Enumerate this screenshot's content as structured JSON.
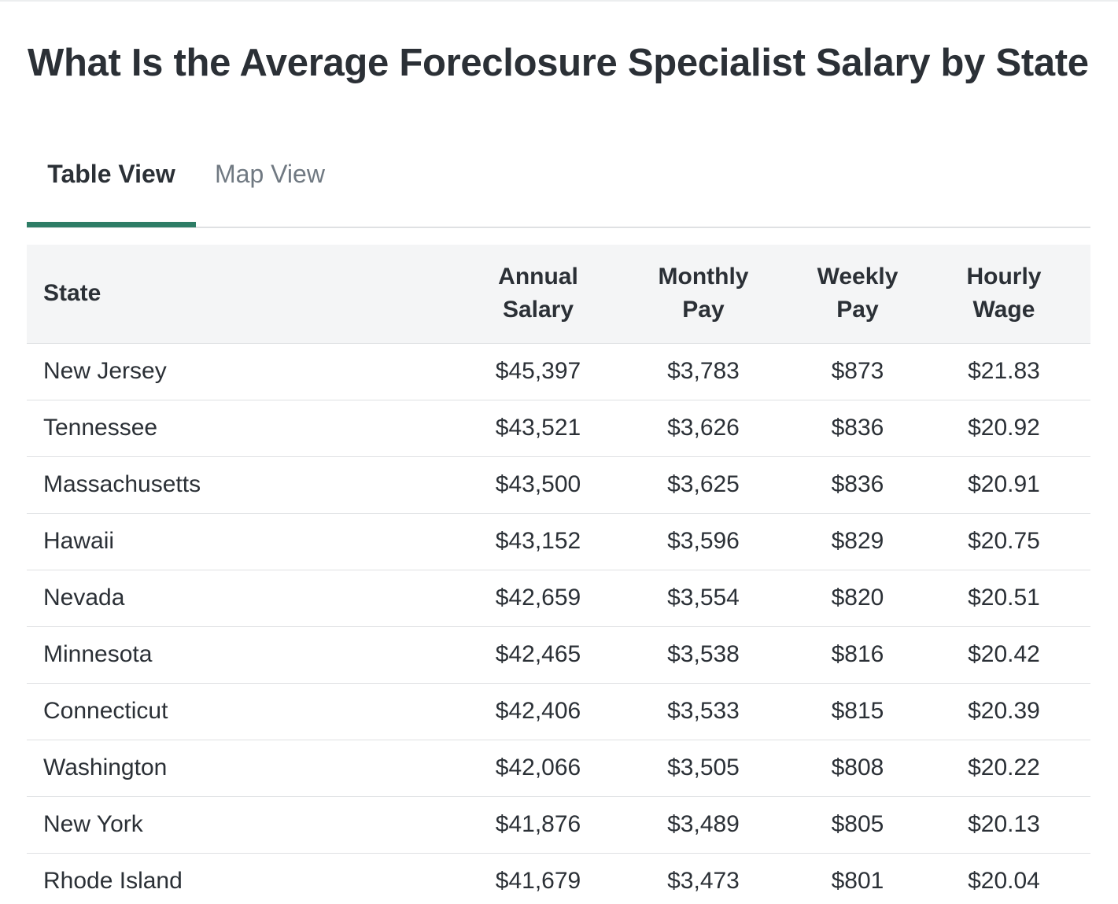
{
  "page": {
    "title": "What Is the Average Foreclosure Specialist Salary by State"
  },
  "tabs": [
    {
      "label": "Table View",
      "active": true
    },
    {
      "label": "Map View",
      "active": false
    }
  ],
  "colors": {
    "accent": "#2e7d66",
    "header_bg": "#f4f5f6",
    "text": "#2b3036",
    "inactive_tab": "#707982"
  },
  "table": {
    "headers": {
      "state": "State",
      "annual_line1": "Annual",
      "annual_line2": "Salary",
      "monthly_line1": "Monthly",
      "monthly_line2": "Pay",
      "weekly_line1": "Weekly",
      "weekly_line2": "Pay",
      "hourly_line1": "Hourly",
      "hourly_line2": "Wage"
    },
    "rows": [
      {
        "state": "New Jersey",
        "annual": "$45,397",
        "monthly": "$3,783",
        "weekly": "$873",
        "hourly": "$21.83"
      },
      {
        "state": "Tennessee",
        "annual": "$43,521",
        "monthly": "$3,626",
        "weekly": "$836",
        "hourly": "$20.92"
      },
      {
        "state": "Massachusetts",
        "annual": "$43,500",
        "monthly": "$3,625",
        "weekly": "$836",
        "hourly": "$20.91"
      },
      {
        "state": "Hawaii",
        "annual": "$43,152",
        "monthly": "$3,596",
        "weekly": "$829",
        "hourly": "$20.75"
      },
      {
        "state": "Nevada",
        "annual": "$42,659",
        "monthly": "$3,554",
        "weekly": "$820",
        "hourly": "$20.51"
      },
      {
        "state": "Minnesota",
        "annual": "$42,465",
        "monthly": "$3,538",
        "weekly": "$816",
        "hourly": "$20.42"
      },
      {
        "state": "Connecticut",
        "annual": "$42,406",
        "monthly": "$3,533",
        "weekly": "$815",
        "hourly": "$20.39"
      },
      {
        "state": "Washington",
        "annual": "$42,066",
        "monthly": "$3,505",
        "weekly": "$808",
        "hourly": "$20.22"
      },
      {
        "state": "New York",
        "annual": "$41,876",
        "monthly": "$3,489",
        "weekly": "$805",
        "hourly": "$20.13"
      },
      {
        "state": "Rhode Island",
        "annual": "$41,679",
        "monthly": "$3,473",
        "weekly": "$801",
        "hourly": "$20.04"
      }
    ]
  }
}
